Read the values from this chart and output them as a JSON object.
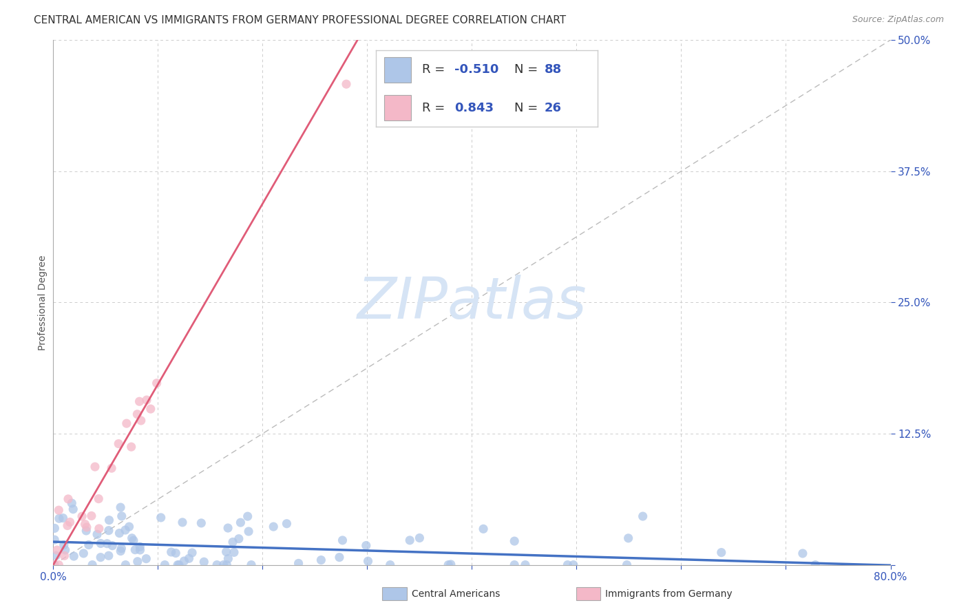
{
  "title": "CENTRAL AMERICAN VS IMMIGRANTS FROM GERMANY PROFESSIONAL DEGREE CORRELATION CHART",
  "source": "Source: ZipAtlas.com",
  "ylabel": "Professional Degree",
  "xlim": [
    0.0,
    0.8
  ],
  "ylim": [
    0.0,
    0.5
  ],
  "xticks": [
    0.0,
    0.1,
    0.2,
    0.3,
    0.4,
    0.5,
    0.6,
    0.7,
    0.8
  ],
  "yticks": [
    0.0,
    0.125,
    0.25,
    0.375,
    0.5
  ],
  "ytick_labels": [
    "",
    "12.5%",
    "25.0%",
    "37.5%",
    "50.0%"
  ],
  "xtick_labels": [
    "0.0%",
    "",
    "",
    "",
    "",
    "",
    "",
    "",
    "80.0%"
  ],
  "grid_color": "#cccccc",
  "background_color": "#ffffff",
  "series": [
    {
      "name": "Central Americans",
      "R": -0.51,
      "N": 88,
      "color": "#aec6e8",
      "line_color": "#4472c4",
      "scatter_alpha": 0.75
    },
    {
      "name": "Immigrants from Germany",
      "R": 0.843,
      "N": 26,
      "color": "#f4b8c8",
      "line_color": "#e05c78",
      "scatter_alpha": 0.75
    }
  ],
  "legend_color": "#3355bb",
  "title_fontsize": 11,
  "axis_label_fontsize": 10,
  "tick_fontsize": 11,
  "tick_color": "#3355bb",
  "source_color": "#888888",
  "watermark_text": "ZIPatlas",
  "watermark_color": "#d6e4f5",
  "ca_slope": -0.028,
  "ca_intercept": 0.022,
  "ig_slope": 1.72,
  "ig_intercept": 0.0
}
